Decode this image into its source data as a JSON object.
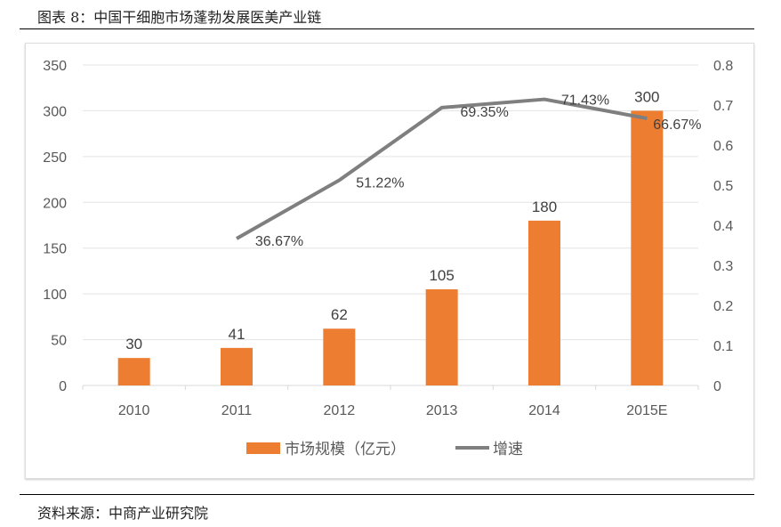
{
  "title": "图表 8：中国干细胞市场蓬勃发展医美产业链",
  "source": "资料来源：中商产业研究院",
  "chart_data": {
    "type": "bar+line",
    "categories": [
      "2010",
      "2011",
      "2012",
      "2013",
      "2014",
      "2015E"
    ],
    "series": [
      {
        "name": "市场规模（亿元）",
        "type": "bar",
        "axis": "left",
        "color": "#ED7D31",
        "values": [
          30,
          41,
          62,
          105,
          180,
          300
        ],
        "labels": [
          "30",
          "41",
          "62",
          "105",
          "180",
          "300"
        ]
      },
      {
        "name": "增速",
        "type": "line",
        "axis": "right",
        "color": "#7F7F7F",
        "values": [
          null,
          0.3667,
          0.5122,
          0.6935,
          0.7143,
          0.6667
        ],
        "labels": [
          "",
          "36.67%",
          "51.22%",
          "69.35%",
          "71.43%",
          "66.67%"
        ]
      }
    ],
    "left_axis": {
      "range": [
        0,
        350
      ],
      "ticks": [
        "0",
        "50",
        "100",
        "150",
        "200",
        "250",
        "300",
        "350"
      ]
    },
    "right_axis": {
      "range": [
        0,
        0.8
      ],
      "ticks": [
        "0",
        "0.1",
        "0.2",
        "0.3",
        "0.4",
        "0.5",
        "0.6",
        "0.7",
        "0.8"
      ]
    },
    "grid": true,
    "legend": "bottom"
  }
}
